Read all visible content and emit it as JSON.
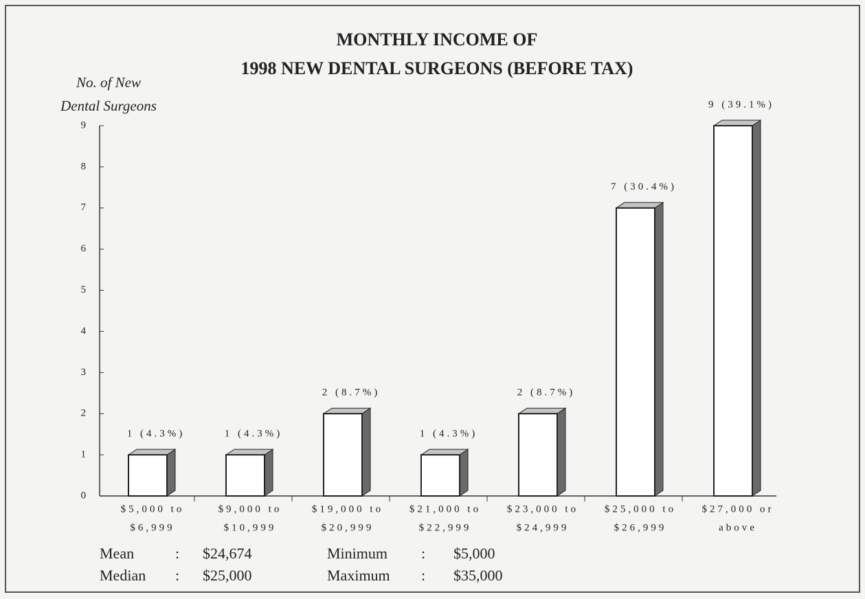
{
  "chart_data": {
    "type": "bar3d",
    "title": [
      "MONTHLY INCOME OF",
      "1998 NEW DENTAL SURGEONS (BEFORE TAX)"
    ],
    "y_label": [
      "No. of New",
      "Dental Surgeons"
    ],
    "categories": [
      [
        "$5,000 to",
        "$6,999"
      ],
      [
        "$9,000 to",
        "$10,999"
      ],
      [
        "$19,000 to",
        "$20,999"
      ],
      [
        "$21,000 to",
        "$22,999"
      ],
      [
        "$23,000 to",
        "$24,999"
      ],
      [
        "$25,000 to",
        "$26,999"
      ],
      [
        "$27,000 or",
        "above"
      ]
    ],
    "values": [
      1,
      1,
      2,
      1,
      2,
      7,
      9
    ],
    "value_labels": [
      "1 (4.3%)",
      "1 (4.3%)",
      "2 (8.7%)",
      "1 (4.3%)",
      "2 (8.7%)",
      "7 (30.4%)",
      "9 (39.1%)"
    ],
    "color": "#ffffff",
    "side_color": "#6a6a6a",
    "top_color": "#c4c4c4",
    "ylim": [
      0,
      9
    ],
    "yticks": [
      0,
      1,
      2,
      3,
      4,
      5,
      6,
      7,
      8,
      9
    ],
    "grid": false,
    "separator": ":",
    "stats": [
      {
        "label": "Mean",
        "value": "$24,674"
      },
      {
        "label": "Median",
        "value": "$25,000"
      },
      {
        "label": "Minimum",
        "value": "$5,000"
      },
      {
        "label": "Maximum",
        "value": "$35,000"
      }
    ]
  }
}
